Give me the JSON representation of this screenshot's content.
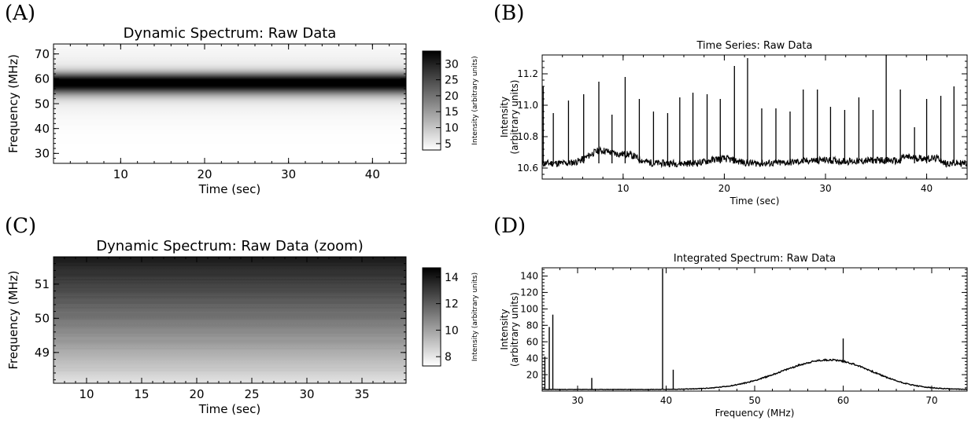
{
  "panel_labels": [
    "(A)",
    "(B)",
    "(C)",
    "(D)"
  ],
  "chart_data": [
    {
      "type": "heatmap",
      "panel": "(A)",
      "title": "Dynamic Spectrum: Raw Data",
      "xlabel": "Time (sec)",
      "ylabel": "Frequency (MHz)",
      "xlim": [
        2,
        44
      ],
      "ylim": [
        26,
        74
      ],
      "xticks": [
        10,
        20,
        30,
        40
      ],
      "yticks": [
        30,
        40,
        50,
        60,
        70
      ],
      "colorbar": {
        "label": "Intensity (arbitrary units)",
        "range": [
          3,
          34
        ],
        "ticks": [
          5,
          10,
          15,
          20,
          25,
          30
        ]
      },
      "colormap": "greyscale-inverted",
      "spectral_profile": {
        "peak_frequency_mhz": 58.5,
        "peak_intensity": 34,
        "background_intensity": 3
      }
    },
    {
      "type": "line",
      "panel": "(B)",
      "title": "Time Series: Raw Data",
      "xlabel": "Time (sec)",
      "ylabel": "Intensity\n(arbitrary units)",
      "xlim": [
        2,
        44
      ],
      "ylim": [
        10.53,
        11.32
      ],
      "xticks": [
        10,
        20,
        30,
        40
      ],
      "yticks": [
        10.6,
        10.8,
        11.0,
        11.2
      ],
      "baseline": 10.63,
      "bumps": [
        {
          "x": 7.8,
          "amplitude": 0.08,
          "width": 1.2
        },
        {
          "x": 10.5,
          "amplitude": 0.05,
          "width": 1.0
        },
        {
          "x": 19.8,
          "amplitude": 0.03,
          "width": 1.2
        },
        {
          "x": 29.5,
          "amplitude": 0.02,
          "width": 2.0
        },
        {
          "x": 35.5,
          "amplitude": 0.02,
          "width": 2.0
        }
      ],
      "steps": [
        {
          "from": 37.5,
          "to": 41.5,
          "delta": 0.03
        }
      ],
      "spikes": [
        {
          "x": 2.1,
          "y": 11.12
        },
        {
          "x": 3.1,
          "y": 10.95
        },
        {
          "x": 4.6,
          "y": 11.03
        },
        {
          "x": 6.1,
          "y": 11.07
        },
        {
          "x": 7.6,
          "y": 11.15
        },
        {
          "x": 8.9,
          "y": 10.94
        },
        {
          "x": 10.2,
          "y": 11.18
        },
        {
          "x": 11.6,
          "y": 11.04
        },
        {
          "x": 13.0,
          "y": 10.96
        },
        {
          "x": 14.4,
          "y": 10.95
        },
        {
          "x": 15.6,
          "y": 11.05
        },
        {
          "x": 16.9,
          "y": 11.08
        },
        {
          "x": 18.3,
          "y": 11.07
        },
        {
          "x": 19.6,
          "y": 11.04
        },
        {
          "x": 21.0,
          "y": 11.25
        },
        {
          "x": 22.3,
          "y": 11.3
        },
        {
          "x": 23.7,
          "y": 10.98
        },
        {
          "x": 25.1,
          "y": 10.98
        },
        {
          "x": 26.5,
          "y": 10.96
        },
        {
          "x": 27.8,
          "y": 11.1
        },
        {
          "x": 29.2,
          "y": 11.1
        },
        {
          "x": 30.5,
          "y": 10.99
        },
        {
          "x": 31.9,
          "y": 10.97
        },
        {
          "x": 33.3,
          "y": 11.05
        },
        {
          "x": 34.7,
          "y": 10.97
        },
        {
          "x": 36.0,
          "y": 11.32
        },
        {
          "x": 37.4,
          "y": 11.1
        },
        {
          "x": 38.8,
          "y": 10.86
        },
        {
          "x": 40.0,
          "y": 11.04
        },
        {
          "x": 41.4,
          "y": 11.06
        },
        {
          "x": 42.7,
          "y": 11.12
        }
      ]
    },
    {
      "type": "heatmap",
      "panel": "(C)",
      "title": "Dynamic Spectrum: Raw Data (zoom)",
      "xlabel": "Time (sec)",
      "ylabel": "Frequency (MHz)",
      "xlim": [
        7,
        39
      ],
      "ylim": [
        48.1,
        51.8
      ],
      "xticks": [
        10,
        15,
        20,
        25,
        30,
        35
      ],
      "yticks": [
        49,
        50,
        51
      ],
      "colorbar": {
        "label": "Intensity (arbitrary units)",
        "range": [
          7.3,
          14.7
        ],
        "ticks": [
          8,
          10,
          12,
          14
        ]
      },
      "colormap": "greyscale-inverted",
      "gradient": {
        "bottom_intensity": 8,
        "top_intensity": 14
      }
    },
    {
      "type": "line",
      "panel": "(D)",
      "title": "Integrated Spectrum: Raw Data",
      "xlabel": "Frequency (MHz)",
      "ylabel": "Intensity\n(arbitrary units)",
      "xlim": [
        26,
        74
      ],
      "ylim": [
        0,
        150
      ],
      "xticks": [
        30,
        40,
        50,
        60,
        70
      ],
      "yticks": [
        20,
        40,
        60,
        80,
        100,
        120,
        140
      ],
      "baseline": 2,
      "broad_peak": {
        "center": 58.5,
        "amplitude": 36,
        "width_low": 5.5,
        "width_high": 4.8
      },
      "spikes": [
        {
          "x": 26.3,
          "y": 42
        },
        {
          "x": 26.8,
          "y": 78
        },
        {
          "x": 27.2,
          "y": 93
        },
        {
          "x": 31.6,
          "y": 16
        },
        {
          "x": 39.6,
          "y": 149
        },
        {
          "x": 40.8,
          "y": 26
        },
        {
          "x": 60.0,
          "y": 64
        }
      ]
    }
  ]
}
